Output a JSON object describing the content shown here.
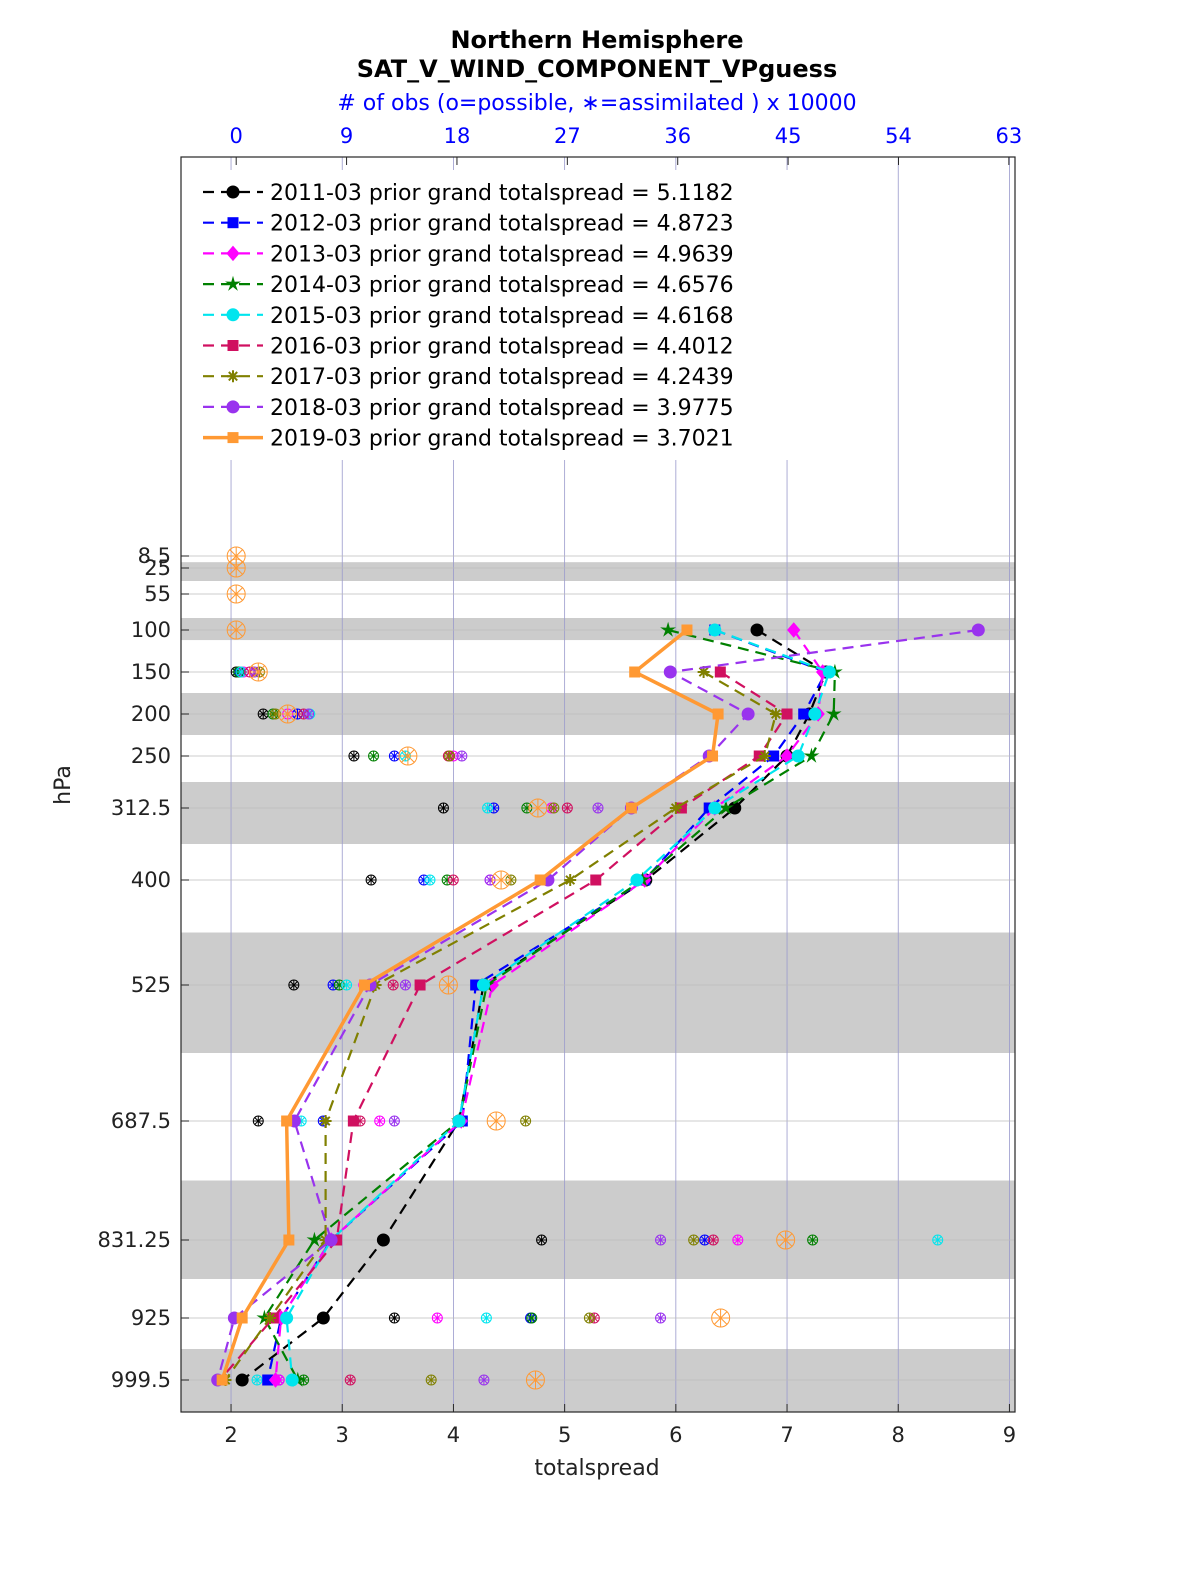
{
  "chart_data": {
    "type": "line",
    "title": "Northern Hemisphere",
    "subtitle": "SAT_V_WIND_COMPONENT_VPguess",
    "top_axis_label": "# of obs (o=possible, ∗=assimilated ) x 10000",
    "xlabel": "totalspread",
    "ylabel": "hPa",
    "xlim": [
      1.55,
      9.05
    ],
    "xticks": [
      "2",
      "3",
      "4",
      "5",
      "6",
      "7",
      "8",
      "9"
    ],
    "top_xlim": [
      -4.5,
      63.5
    ],
    "top_xticks": [
      "0",
      "9",
      "18",
      "27",
      "36",
      "45",
      "54",
      "63"
    ],
    "y_levels": [
      "8.5",
      "25",
      "55",
      "100",
      "150",
      "200",
      "250",
      "312.5",
      "400",
      "525",
      "687.5",
      "831.25",
      "925",
      "999.5"
    ],
    "legend_position": "top-left",
    "series": [
      {
        "name": "2011-03 prior grand totalspread = 5.1182",
        "color": "#000000",
        "marker": "circle",
        "dash": "dashed",
        "values": [
          null,
          null,
          null,
          6.73,
          7.35,
          7.2,
          7.0,
          6.53,
          5.73,
          4.27,
          4.05,
          3.37,
          2.83,
          2.1
        ],
        "obs_possible": [
          null,
          null,
          null,
          null,
          0.0,
          2.2,
          9.6,
          16.9,
          11.0,
          4.7,
          1.8,
          24.9,
          12.9,
          0.5
        ],
        "obs_assimilated": [
          null,
          null,
          null,
          null,
          0.0,
          2.2,
          9.6,
          16.9,
          11.0,
          4.7,
          1.8,
          24.9,
          12.9,
          0.5
        ]
      },
      {
        "name": "2012-03 prior grand totalspread = 4.8723",
        "color": "#0000ff",
        "marker": "square",
        "dash": "dashed",
        "values": [
          null,
          null,
          null,
          6.35,
          7.35,
          7.15,
          6.88,
          6.3,
          5.72,
          4.2,
          4.08,
          2.9,
          2.45,
          2.33
        ],
        "obs_possible": [
          null,
          null,
          null,
          null,
          0.3,
          5.0,
          12.9,
          21.0,
          15.3,
          7.9,
          7.1,
          38.2,
          24.0,
          3.5
        ],
        "obs_assimilated": [
          null,
          null,
          null,
          null,
          0.3,
          5.0,
          12.9,
          21.0,
          15.3,
          7.9,
          7.1,
          38.2,
          24.0,
          3.5
        ]
      },
      {
        "name": "2013-03 prior grand totalspread = 4.9639",
        "color": "#ff00ff",
        "marker": "diamond",
        "dash": "dashed",
        "values": [
          null,
          null,
          null,
          7.06,
          7.32,
          7.28,
          7.0,
          6.35,
          5.72,
          4.35,
          4.07,
          2.9,
          2.45,
          2.4
        ],
        "obs_possible": [
          null,
          null,
          null,
          null,
          0.6,
          4.2,
          17.7,
          25.7,
          20.7,
          10.4,
          11.7,
          40.9,
          16.4,
          3.5
        ],
        "obs_assimilated": [
          null,
          null,
          null,
          null,
          0.6,
          4.2,
          17.7,
          25.7,
          20.7,
          10.4,
          11.7,
          40.9,
          16.4,
          3.5
        ]
      },
      {
        "name": "2014-03 prior grand totalspread = 4.6576",
        "color": "#008000",
        "marker": "star",
        "dash": "dashed",
        "values": [
          null,
          null,
          null,
          5.93,
          7.43,
          7.42,
          7.22,
          6.45,
          5.7,
          4.3,
          4.05,
          2.75,
          2.3,
          2.6
        ],
        "obs_possible": [
          null,
          null,
          null,
          null,
          0.2,
          3.0,
          11.2,
          23.7,
          17.2,
          8.4,
          9.6,
          47.0,
          24.1,
          5.5
        ],
        "obs_assimilated": [
          null,
          null,
          null,
          null,
          0.2,
          3.0,
          11.2,
          23.7,
          17.2,
          8.4,
          9.6,
          47.0,
          24.1,
          5.5
        ]
      },
      {
        "name": "2015-03 prior grand totalspread = 4.6168",
        "color": "#00e5ee",
        "marker": "circle",
        "dash": "dashed",
        "values": [
          null,
          null,
          null,
          6.35,
          7.38,
          7.25,
          7.1,
          6.35,
          5.65,
          4.27,
          4.05,
          2.9,
          2.5,
          2.55
        ],
        "obs_possible": [
          null,
          null,
          null,
          null,
          0.4,
          6.0,
          13.8,
          20.5,
          15.8,
          9.0,
          5.3,
          57.2,
          20.4,
          1.7
        ],
        "obs_assimilated": [
          null,
          null,
          null,
          null,
          0.4,
          6.0,
          13.8,
          20.5,
          15.8,
          9.0,
          5.3,
          57.2,
          20.4,
          1.7
        ]
      },
      {
        "name": "2016-03 prior grand totalspread = 4.4012",
        "color": "#d01060",
        "marker": "square",
        "dash": "dashed",
        "values": [
          null,
          null,
          null,
          null,
          6.4,
          7.0,
          6.75,
          6.05,
          5.28,
          3.7,
          3.1,
          2.95,
          2.38,
          1.9
        ],
        "obs_possible": [
          null,
          null,
          null,
          null,
          1.1,
          5.5,
          17.3,
          27.0,
          17.7,
          12.8,
          10.1,
          38.9,
          29.2,
          9.3
        ],
        "obs_assimilated": [
          null,
          null,
          null,
          null,
          1.1,
          5.5,
          17.3,
          27.0,
          17.7,
          12.8,
          10.1,
          38.9,
          29.2,
          9.3
        ]
      },
      {
        "name": "2017-03 prior grand totalspread = 4.2439",
        "color": "#808000",
        "marker": "asterisk",
        "dash": "dashed",
        "values": [
          null,
          null,
          null,
          null,
          6.25,
          6.9,
          6.8,
          6.0,
          5.05,
          3.3,
          2.85,
          2.85,
          2.35,
          1.95
        ],
        "obs_possible": [
          null,
          null,
          null,
          null,
          1.9,
          3.2,
          17.4,
          25.9,
          22.4,
          10.8,
          23.6,
          37.3,
          28.8,
          15.9
        ],
        "obs_assimilated": [
          null,
          null,
          null,
          null,
          1.9,
          3.2,
          17.4,
          25.9,
          22.4,
          10.8,
          23.6,
          37.3,
          28.8,
          15.9
        ]
      },
      {
        "name": "2018-03 prior grand totalspread = 3.9775",
        "color": "#9933ee",
        "marker": "circle",
        "dash": "dashed",
        "values": [
          null,
          null,
          null,
          8.72,
          5.95,
          6.65,
          6.3,
          5.6,
          4.85,
          3.25,
          2.57,
          2.9,
          2.03,
          1.88
        ],
        "obs_possible": [
          null,
          null,
          null,
          null,
          1.5,
          5.9,
          18.4,
          29.5,
          20.7,
          13.8,
          12.9,
          34.6,
          34.6,
          20.2
        ],
        "obs_assimilated": [
          null,
          null,
          null,
          null,
          1.5,
          5.9,
          18.4,
          29.5,
          20.7,
          13.8,
          12.9,
          34.6,
          34.6,
          20.2
        ]
      },
      {
        "name": "2019-03 prior grand totalspread = 3.7021",
        "color": "#ff9933",
        "marker": "square",
        "dash": "solid",
        "values": [
          null,
          null,
          null,
          6.1,
          5.63,
          6.38,
          6.33,
          5.6,
          4.78,
          3.2,
          2.5,
          2.52,
          2.1,
          1.92
        ],
        "obs_possible": [
          0.0,
          0.0,
          0.0,
          0.0,
          1.8,
          4.2,
          14.0,
          24.6,
          21.6,
          17.3,
          21.2,
          44.8,
          39.5,
          24.4
        ],
        "obs_assimilated": [
          0.0,
          0.0,
          0.0,
          0.0,
          1.8,
          4.2,
          14.0,
          24.6,
          21.6,
          17.3,
          21.2,
          44.8,
          39.5,
          24.4
        ]
      }
    ]
  }
}
